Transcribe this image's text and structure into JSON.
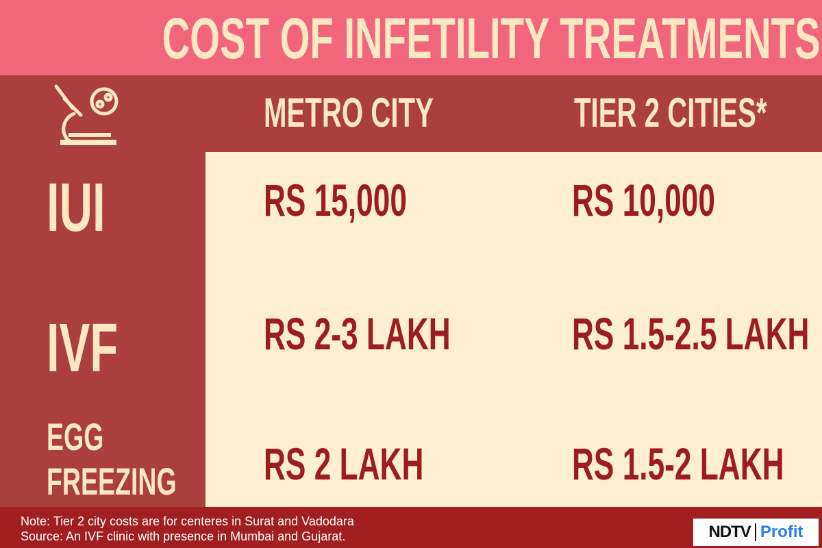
{
  "header": {
    "title": "COST OF INFETILITY TREATMENTS"
  },
  "table": {
    "columns": [
      "METRO CITY",
      "TIER 2 CITIES*"
    ],
    "rows": [
      {
        "label": "IUI",
        "cells": [
          "RS 15,000",
          "RS 10,000"
        ]
      },
      {
        "label": "IVF",
        "cells": [
          "RS 2-3 LAKH",
          "RS 1.5-2.5 LAKH"
        ]
      },
      {
        "label": "EGG FREEZING",
        "cells": [
          "RS 2 LAKH",
          "RS 1.5-2 LAKH"
        ]
      }
    ]
  },
  "footer": {
    "notes": [
      "Note: Tier 2 city costs are for centeres in Surat and Vadodara",
      "Source: An IVF clinic with presence in Mumbai and Gujarat."
    ]
  },
  "logo": {
    "brand": "NDTV",
    "product": "Profit"
  }
}
